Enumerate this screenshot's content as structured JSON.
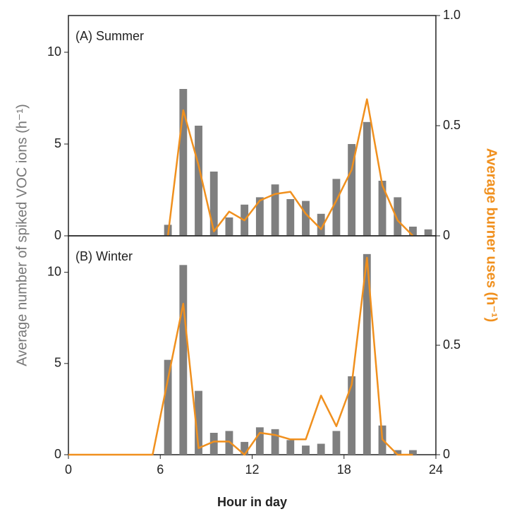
{
  "chart_data": [
    {
      "type": "combo",
      "label": "(A) Summer",
      "ylabel": "Average number of spiked VOC ions (h⁻¹)",
      "y2label": "Average burner uses  (h⁻¹)",
      "xlim": [
        0,
        24
      ],
      "ylim": [
        0,
        12
      ],
      "yticks": [
        0,
        5,
        10
      ],
      "y2lim": [
        0,
        1
      ],
      "y2ticks": [
        0,
        0.5,
        {
          "value": 1,
          "label": "1.0"
        }
      ],
      "series": [
        {
          "kind": "bar",
          "color": "#7f7f7f",
          "x": [
            0.5,
            1.5,
            2.5,
            3.5,
            4.5,
            5.5,
            6.5,
            7.5,
            8.5,
            9.5,
            10.5,
            11.5,
            12.5,
            13.5,
            14.5,
            15.5,
            16.5,
            17.5,
            18.5,
            19.5,
            20.5,
            21.5,
            22.5,
            23.5
          ],
          "values": [
            0,
            0,
            0,
            0,
            0,
            0,
            0.6,
            8.0,
            6.0,
            3.5,
            1.0,
            1.7,
            2.1,
            2.8,
            2.0,
            1.9,
            1.2,
            3.1,
            5.0,
            6.2,
            3.0,
            2.1,
            0.5,
            0.35
          ]
        },
        {
          "kind": "line",
          "axis": "y2",
          "color": "#f0901e",
          "x": [
            6.5,
            7.5,
            8.5,
            9.5,
            10.5,
            11.5,
            12.5,
            13.5,
            14.5,
            15.5,
            16.5,
            17.5,
            18.5,
            19.5,
            20.5,
            21.5,
            22.5
          ],
          "values": [
            0,
            0.57,
            0.32,
            0.02,
            0.11,
            0.07,
            0.16,
            0.19,
            0.2,
            0.1,
            0.03,
            0.16,
            0.3,
            0.62,
            0.23,
            0.07,
            0
          ]
        }
      ]
    },
    {
      "type": "combo",
      "label": "(B) Winter",
      "xlabel": "Hour in day",
      "xlim": [
        0,
        24
      ],
      "xticks": [
        0,
        6,
        12,
        18,
        24
      ],
      "ylim": [
        0,
        12
      ],
      "yticks": [
        0,
        5,
        10
      ],
      "y2lim": [
        0,
        1
      ],
      "y2ticks": [
        0,
        0.5
      ],
      "series": [
        {
          "kind": "bar",
          "color": "#7f7f7f",
          "x": [
            0.5,
            1.5,
            2.5,
            3.5,
            4.5,
            5.5,
            6.5,
            7.5,
            8.5,
            9.5,
            10.5,
            11.5,
            12.5,
            13.5,
            14.5,
            15.5,
            16.5,
            17.5,
            18.5,
            19.5,
            20.5,
            21.5,
            22.5,
            23.5
          ],
          "values": [
            0,
            0,
            0,
            0,
            0,
            0,
            5.2,
            10.4,
            3.5,
            1.2,
            1.3,
            0.7,
            1.5,
            1.4,
            0.8,
            0.5,
            0.6,
            1.3,
            4.3,
            11.0,
            1.6,
            0.25,
            0.25,
            0
          ]
        },
        {
          "kind": "line",
          "axis": "y2",
          "color": "#f0901e",
          "x": [
            0,
            5.5,
            7.5,
            8.5,
            9.5,
            10.5,
            11.5,
            12.5,
            13.5,
            14.5,
            15.5,
            16.5,
            17.5,
            18.5,
            19.5,
            20.5,
            21.5,
            22.5
          ],
          "values": [
            0,
            0,
            0.69,
            0.03,
            0.06,
            0.06,
            0,
            0.1,
            0.09,
            0.07,
            0.07,
            0.27,
            0.13,
            0.32,
            0.9,
            0.07,
            0,
            0
          ]
        }
      ]
    }
  ]
}
